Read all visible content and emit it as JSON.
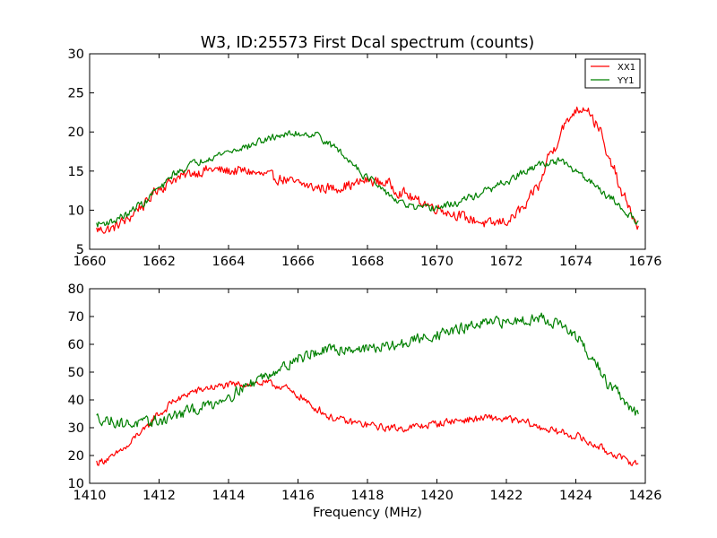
{
  "title": "W3, ID:25573 First Dcal spectrum (counts)",
  "colors": {
    "XX1": "#ff0000",
    "YY1": "#008000",
    "axes": "#000000",
    "background": "#ffffff"
  },
  "chart_data": [
    {
      "type": "line",
      "title": "W3, ID:25573 First Dcal spectrum (counts)",
      "xlabel": "",
      "ylabel": "",
      "xlim": [
        1660,
        1676
      ],
      "ylim": [
        5,
        30
      ],
      "xticks": [
        "1660",
        "1662",
        "1664",
        "1666",
        "1668",
        "1670",
        "1672",
        "1674",
        "1676"
      ],
      "yticks": [
        "5",
        "10",
        "15",
        "20",
        "25",
        "30"
      ],
      "grid": false,
      "legend": {
        "placement": "top-right",
        "entries": [
          "XX1",
          "YY1"
        ]
      },
      "x_range": [
        1660.2,
        1675.8
      ],
      "series": [
        {
          "name": "XX1",
          "color": "#ff0000",
          "x": [
            1660.2,
            1660.6,
            1661.0,
            1661.5,
            1662.0,
            1662.5,
            1663.0,
            1663.5,
            1664.0,
            1664.5,
            1665.0,
            1665.5,
            1666.0,
            1666.5,
            1667.0,
            1667.5,
            1668.0,
            1668.5,
            1669.0,
            1669.5,
            1670.0,
            1670.5,
            1671.0,
            1671.5,
            1672.0,
            1672.5,
            1672.9,
            1673.3,
            1673.7,
            1674.0,
            1674.3,
            1674.6,
            1675.0,
            1675.4,
            1675.8
          ],
          "values": [
            7.5,
            7.6,
            8.6,
            10.5,
            12.8,
            14.1,
            14.8,
            15.2,
            15.0,
            15.0,
            14.5,
            14.0,
            13.4,
            12.9,
            12.8,
            13.2,
            13.8,
            13.5,
            12.2,
            11.1,
            10.3,
            9.5,
            8.8,
            8.2,
            8.6,
            10.2,
            13.0,
            17.5,
            21.0,
            22.8,
            23.2,
            21.0,
            16.0,
            11.5,
            7.8
          ],
          "noise": 0.6
        },
        {
          "name": "YY1",
          "color": "#008000",
          "x": [
            1660.2,
            1660.6,
            1661.0,
            1661.5,
            1662.0,
            1662.5,
            1663.0,
            1663.5,
            1664.0,
            1664.5,
            1665.0,
            1665.5,
            1666.0,
            1666.5,
            1667.0,
            1667.5,
            1668.0,
            1668.5,
            1669.0,
            1669.5,
            1670.0,
            1670.5,
            1671.0,
            1671.5,
            1672.0,
            1672.5,
            1673.0,
            1673.5,
            1674.0,
            1674.5,
            1675.0,
            1675.5,
            1675.8
          ],
          "values": [
            8.2,
            8.5,
            9.3,
            10.8,
            12.8,
            14.8,
            16.0,
            16.8,
            17.5,
            18.1,
            18.9,
            19.6,
            19.8,
            19.7,
            18.2,
            16.3,
            14.2,
            12.3,
            10.8,
            10.2,
            10.3,
            10.8,
            11.7,
            12.6,
            13.6,
            14.8,
            15.9,
            16.3,
            15.0,
            13.5,
            11.5,
            9.5,
            8.6
          ],
          "noise": 0.4
        }
      ]
    },
    {
      "type": "line",
      "title": "",
      "xlabel": "Frequency (MHz)",
      "ylabel": "",
      "xlim": [
        1410,
        1426
      ],
      "ylim": [
        10,
        80
      ],
      "xticks": [
        "1410",
        "1412",
        "1414",
        "1416",
        "1418",
        "1420",
        "1422",
        "1424",
        "1426"
      ],
      "yticks": [
        "10",
        "20",
        "30",
        "40",
        "50",
        "60",
        "70",
        "80"
      ],
      "grid": false,
      "legend": null,
      "x_range": [
        1410.2,
        1425.8
      ],
      "series": [
        {
          "name": "XX1",
          "color": "#ff0000",
          "x": [
            1410.2,
            1410.6,
            1411.0,
            1411.5,
            1412.0,
            1412.5,
            1413.0,
            1413.5,
            1414.0,
            1414.5,
            1415.0,
            1415.5,
            1416.0,
            1416.5,
            1417.0,
            1417.5,
            1418.0,
            1418.5,
            1419.0,
            1419.5,
            1420.0,
            1420.5,
            1421.0,
            1421.5,
            1422.0,
            1422.5,
            1423.0,
            1423.5,
            1424.0,
            1424.5,
            1425.0,
            1425.5,
            1425.8
          ],
          "values": [
            17.5,
            19.0,
            22.5,
            28.5,
            35.0,
            40.0,
            43.0,
            44.5,
            45.2,
            45.8,
            46.0,
            45.0,
            41.5,
            37.0,
            33.5,
            32.0,
            31.0,
            30.0,
            29.8,
            30.5,
            31.5,
            32.5,
            33.0,
            33.5,
            33.0,
            32.0,
            30.0,
            28.5,
            27.0,
            24.0,
            21.0,
            18.0,
            17.0
          ],
          "noise": 1.2
        },
        {
          "name": "YY1",
          "color": "#008000",
          "x": [
            1410.2,
            1410.6,
            1411.0,
            1411.5,
            1412.0,
            1412.5,
            1413.0,
            1413.5,
            1414.0,
            1414.5,
            1415.0,
            1415.5,
            1416.0,
            1416.5,
            1417.0,
            1417.5,
            1418.0,
            1418.5,
            1419.0,
            1419.5,
            1420.0,
            1420.5,
            1421.0,
            1421.5,
            1422.0,
            1422.5,
            1423.0,
            1423.5,
            1424.0,
            1424.5,
            1425.0,
            1425.5,
            1425.8
          ],
          "values": [
            33.5,
            32.5,
            31.5,
            31.5,
            32.5,
            34.5,
            36.5,
            38.5,
            41.5,
            45.0,
            48.5,
            51.5,
            55.0,
            57.0,
            58.0,
            58.5,
            58.5,
            59.0,
            60.0,
            62.0,
            63.5,
            65.0,
            66.5,
            67.5,
            68.0,
            69.0,
            69.5,
            67.5,
            62.5,
            54.0,
            45.0,
            38.0,
            34.5
          ],
          "noise": 1.8
        }
      ]
    }
  ]
}
